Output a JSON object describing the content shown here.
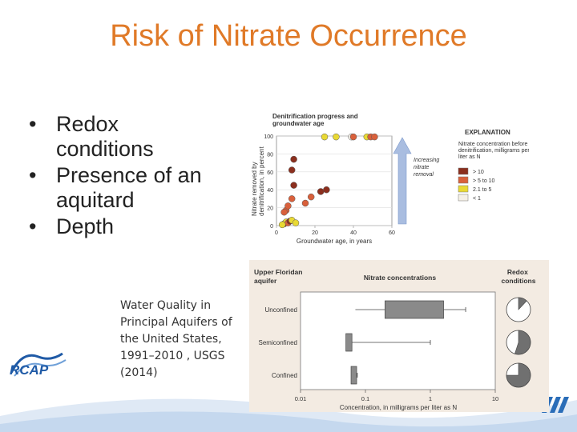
{
  "title": "Risk of Nitrate Occurrence",
  "bullets": [
    {
      "label": "Redox conditions"
    },
    {
      "label": "Presence of an aquitard"
    },
    {
      "label": "Depth"
    }
  ],
  "bullet_glyph": "•",
  "citation": "Water Quality in Principal Aquifers of the United States, 1991–2010 , USGS (2014)",
  "logo": {
    "text": "RCAP",
    "color": "#1f5aa6"
  },
  "accent_color": "#e07a28",
  "chart_data": [
    {
      "type": "scatter",
      "title": "Denitrification progress and groundwater age",
      "xlabel": "Groundwater age, in years",
      "ylabel": "Nitrate removed by denitrification, in percent",
      "xlim": [
        0,
        60
      ],
      "ylim": [
        0,
        100
      ],
      "xticks": [
        "0",
        "20",
        "40",
        "60"
      ],
      "yticks": [
        "0",
        "20",
        "40",
        "60",
        "80",
        "100"
      ],
      "arrow_label": "Increasing nitrate removal",
      "legend": {
        "title": "EXPLANATION",
        "subtitle": "Nitrate concentration before denitrification, milligrams per liter as N",
        "placement": "right",
        "entries": [
          {
            "label": "> 10",
            "color": "#8b2f1e"
          },
          {
            "label": "> 5 to 10",
            "color": "#d9603b"
          },
          {
            "label": "2.1 to 5",
            "color": "#e9d934"
          },
          {
            "label": "< 1",
            "color": "#f5f0e6"
          }
        ]
      },
      "points": [
        {
          "x": 4,
          "y": 2,
          "color": "#8b2f1e"
        },
        {
          "x": 5,
          "y": 4,
          "color": "#e9d934"
        },
        {
          "x": 6,
          "y": 3,
          "color": "#d9603b"
        },
        {
          "x": 7,
          "y": 5,
          "color": "#8b2f1e"
        },
        {
          "x": 8,
          "y": 6,
          "color": "#e9d934"
        },
        {
          "x": 3,
          "y": 1,
          "color": "#e9d934"
        },
        {
          "x": 10,
          "y": 3,
          "color": "#e9d934"
        },
        {
          "x": 5,
          "y": 17,
          "color": "#d9603b"
        },
        {
          "x": 4,
          "y": 15,
          "color": "#d9603b"
        },
        {
          "x": 6,
          "y": 22,
          "color": "#d9603b"
        },
        {
          "x": 8,
          "y": 30,
          "color": "#d9603b"
        },
        {
          "x": 9,
          "y": 45,
          "color": "#8b2f1e"
        },
        {
          "x": 8,
          "y": 62,
          "color": "#8b2f1e"
        },
        {
          "x": 9,
          "y": 74,
          "color": "#8b2f1e"
        },
        {
          "x": 15,
          "y": 25,
          "color": "#d9603b"
        },
        {
          "x": 18,
          "y": 32,
          "color": "#d9603b"
        },
        {
          "x": 23,
          "y": 38,
          "color": "#8b2f1e"
        },
        {
          "x": 26,
          "y": 40,
          "color": "#8b2f1e"
        },
        {
          "x": 25,
          "y": 99,
          "color": "#e9d934"
        },
        {
          "x": 31,
          "y": 99,
          "color": "#e9d934"
        },
        {
          "x": 39,
          "y": 99,
          "color": "#f5f0e6"
        },
        {
          "x": 40,
          "y": 99,
          "color": "#d9603b"
        },
        {
          "x": 47,
          "y": 99,
          "color": "#e9d934"
        },
        {
          "x": 49,
          "y": 99,
          "color": "#d9603b"
        },
        {
          "x": 51,
          "y": 99,
          "color": "#d9603b"
        }
      ]
    },
    {
      "type": "box",
      "title": "Nitrate concentrations",
      "left_header": "Upper Floridan aquifer",
      "right_header": "Redox conditions",
      "xlabel": "Concentration, in milligrams per liter as N",
      "scale": "log",
      "xlim": [
        0.01,
        10
      ],
      "xticks": [
        "0.01",
        "0.1",
        "1",
        "10"
      ],
      "rows": [
        {
          "label": "Unconfined",
          "box": [
            0.2,
            1.6
          ],
          "whisker": [
            0.07,
            3.5
          ],
          "redox_dark_fraction": 0.12
        },
        {
          "label": "Semiconfined",
          "box": [
            0.05,
            0.062
          ],
          "whisker": [
            0.05,
            1.0
          ],
          "redox_dark_fraction": 0.55
        },
        {
          "label": "Confined",
          "box": [
            0.06,
            0.063
          ],
          "whisker": [
            0.06,
            0.075
          ],
          "redox_dark_fraction": 0.75
        }
      ]
    }
  ]
}
